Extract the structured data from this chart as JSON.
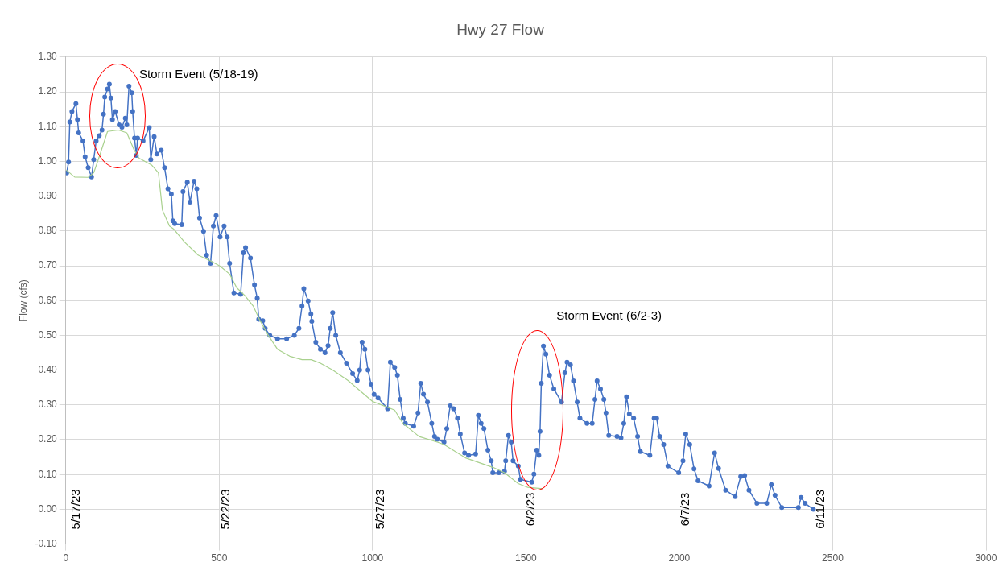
{
  "chart_data": {
    "type": "line",
    "title": "Hwy 27 Flow",
    "ylabel": "Flow (cfs)",
    "xlim": [
      0,
      3000
    ],
    "xticks": [
      0,
      500,
      1000,
      1500,
      2000,
      2500,
      3000
    ],
    "ylim": [
      -0.1,
      1.3
    ],
    "yticks": [
      {
        "value": -0.1,
        "label": "-0.10"
      },
      {
        "value": 0,
        "label": "0.00"
      },
      {
        "value": 0.1,
        "label": "0.10"
      },
      {
        "value": 0.2,
        "label": "0.20"
      },
      {
        "value": 0.3,
        "label": "0.30"
      },
      {
        "value": 0.4,
        "label": "0.40"
      },
      {
        "value": 0.5,
        "label": "0.50"
      },
      {
        "value": 0.6,
        "label": "0.60"
      },
      {
        "value": 0.7,
        "label": "0.70"
      },
      {
        "value": 0.8,
        "label": "0.80"
      },
      {
        "value": 0.9,
        "label": "0.90"
      },
      {
        "value": 1.0,
        "label": "1.00"
      },
      {
        "value": 1.1,
        "label": "1.10"
      },
      {
        "value": 1.2,
        "label": "1.20"
      },
      {
        "value": 1.3,
        "label": "1.30"
      }
    ],
    "grid": true,
    "legend": false,
    "series": [
      {
        "color": "#4472c4",
        "marker": "circle",
        "x": [
          3,
          9,
          13,
          20,
          33,
          38,
          42,
          56,
          63,
          73,
          84,
          91,
          99,
          109,
          118,
          123,
          127,
          136,
          142,
          147,
          152,
          161,
          174,
          183,
          194,
          199,
          206,
          215,
          218,
          224,
          230,
          234,
          252,
          272,
          277,
          288,
          297,
          311,
          322,
          333,
          344,
          349,
          355,
          378,
          382,
          396,
          405,
          418,
          427,
          436,
          449,
          459,
          472,
          481,
          490,
          503,
          516,
          526,
          534,
          548,
          570,
          579,
          586,
          602,
          615,
          624,
          629,
          642,
          650,
          665,
          690,
          720,
          745,
          760,
          770,
          776,
          790,
          799,
          802,
          815,
          830,
          845,
          855,
          862,
          870,
          880,
          895,
          915,
          935,
          950,
          958,
          966,
          975,
          985,
          995,
          1005,
          1018,
          1049,
          1058,
          1072,
          1081,
          1090,
          1100,
          1107,
          1134,
          1148,
          1157,
          1166,
          1179,
          1193,
          1202,
          1211,
          1233,
          1242,
          1253,
          1264,
          1277,
          1286,
          1300,
          1313,
          1336,
          1345,
          1354,
          1363,
          1376,
          1387,
          1392,
          1412,
          1430,
          1434,
          1443,
          1452,
          1458,
          1475,
          1482,
          1519,
          1526,
          1535,
          1542,
          1546,
          1550,
          1557,
          1565,
          1577,
          1591,
          1616,
          1627,
          1634,
          1645,
          1655,
          1667,
          1676,
          1699,
          1716,
          1725,
          1732,
          1743,
          1754,
          1761,
          1770,
          1797,
          1810,
          1819,
          1828,
          1837,
          1851,
          1864,
          1873,
          1904,
          1918,
          1926,
          1936,
          1949,
          1963,
          1998,
          2012,
          2021,
          2034,
          2048,
          2061,
          2097,
          2115,
          2128,
          2151,
          2182,
          2200,
          2213,
          2227,
          2253,
          2285,
          2300,
          2312,
          2334,
          2388,
          2397,
          2410,
          2437
        ],
        "values": [
          0.967,
          0.998,
          1.113,
          1.143,
          1.166,
          1.12,
          1.082,
          1.059,
          1.013,
          0.982,
          0.955,
          1.005,
          1.059,
          1.074,
          1.09,
          1.136,
          1.185,
          1.208,
          1.222,
          1.182,
          1.12,
          1.143,
          1.105,
          1.098,
          1.124,
          1.105,
          1.216,
          1.197,
          1.143,
          1.067,
          1.017,
          1.067,
          1.059,
          1.097,
          1.005,
          1.071,
          1.021,
          1.032,
          0.982,
          0.921,
          0.906,
          0.829,
          0.821,
          0.818,
          0.913,
          0.94,
          0.883,
          0.943,
          0.921,
          0.837,
          0.799,
          0.73,
          0.707,
          0.814,
          0.844,
          0.783,
          0.814,
          0.783,
          0.707,
          0.622,
          0.618,
          0.737,
          0.752,
          0.722,
          0.645,
          0.607,
          0.546,
          0.542,
          0.52,
          0.5,
          0.49,
          0.49,
          0.5,
          0.52,
          0.584,
          0.634,
          0.599,
          0.561,
          0.54,
          0.48,
          0.46,
          0.45,
          0.47,
          0.52,
          0.565,
          0.5,
          0.45,
          0.42,
          0.39,
          0.37,
          0.4,
          0.48,
          0.46,
          0.4,
          0.36,
          0.33,
          0.32,
          0.289,
          0.423,
          0.408,
          0.385,
          0.316,
          0.262,
          0.247,
          0.239,
          0.277,
          0.362,
          0.331,
          0.308,
          0.247,
          0.209,
          0.201,
          0.193,
          0.232,
          0.297,
          0.289,
          0.262,
          0.216,
          0.162,
          0.155,
          0.159,
          0.27,
          0.247,
          0.232,
          0.17,
          0.139,
          0.105,
          0.105,
          0.109,
          0.139,
          0.212,
          0.193,
          0.139,
          0.124,
          0.086,
          0.078,
          0.101,
          0.17,
          0.155,
          0.224,
          0.362,
          0.469,
          0.446,
          0.385,
          0.346,
          0.308,
          0.392,
          0.423,
          0.415,
          0.369,
          0.308,
          0.262,
          0.247,
          0.247,
          0.316,
          0.369,
          0.346,
          0.316,
          0.277,
          0.212,
          0.209,
          0.205,
          0.247,
          0.323,
          0.274,
          0.262,
          0.209,
          0.166,
          0.155,
          0.262,
          0.262,
          0.209,
          0.186,
          0.124,
          0.105,
          0.139,
          0.216,
          0.186,
          0.116,
          0.082,
          0.067,
          0.162,
          0.117,
          0.055,
          0.036,
          0.094,
          0.097,
          0.055,
          0.017,
          0.017,
          0.071,
          0.04,
          0.005,
          0.005,
          0.034,
          0.017,
          0.0
        ]
      },
      {
        "color": "#a9d18e",
        "marker": "none",
        "x": [
          3,
          29,
          73,
          91,
          109,
          136,
          172,
          199,
          221,
          239,
          279,
          302,
          315,
          338,
          351,
          387,
          432,
          472,
          503,
          534,
          557,
          584,
          611,
          631,
          660,
          690,
          730,
          770,
          800,
          830,
          870,
          920,
          960,
          1000,
          1018,
          1072,
          1099,
          1152,
          1211,
          1233,
          1305,
          1394,
          1430,
          1475,
          1506,
          1555
        ],
        "values": [
          0.974,
          0.955,
          0.954,
          0.967,
          1.013,
          1.086,
          1.09,
          1.082,
          1.036,
          1.009,
          0.99,
          0.967,
          0.86,
          0.814,
          0.806,
          0.768,
          0.73,
          0.714,
          0.699,
          0.676,
          0.637,
          0.614,
          0.584,
          0.546,
          0.5,
          0.46,
          0.44,
          0.43,
          0.43,
          0.42,
          0.4,
          0.37,
          0.34,
          0.31,
          0.304,
          0.285,
          0.247,
          0.209,
          0.193,
          0.186,
          0.147,
          0.12,
          0.105,
          0.074,
          0.063,
          0.059
        ]
      }
    ],
    "annotations": [
      "Storm Event (5/18-19)",
      "Storm Event (6/2-3)",
      "5/17/23",
      "5/22/23",
      "5/27/23",
      "6/2/23",
      "6/7/23",
      "6/11/23"
    ]
  }
}
